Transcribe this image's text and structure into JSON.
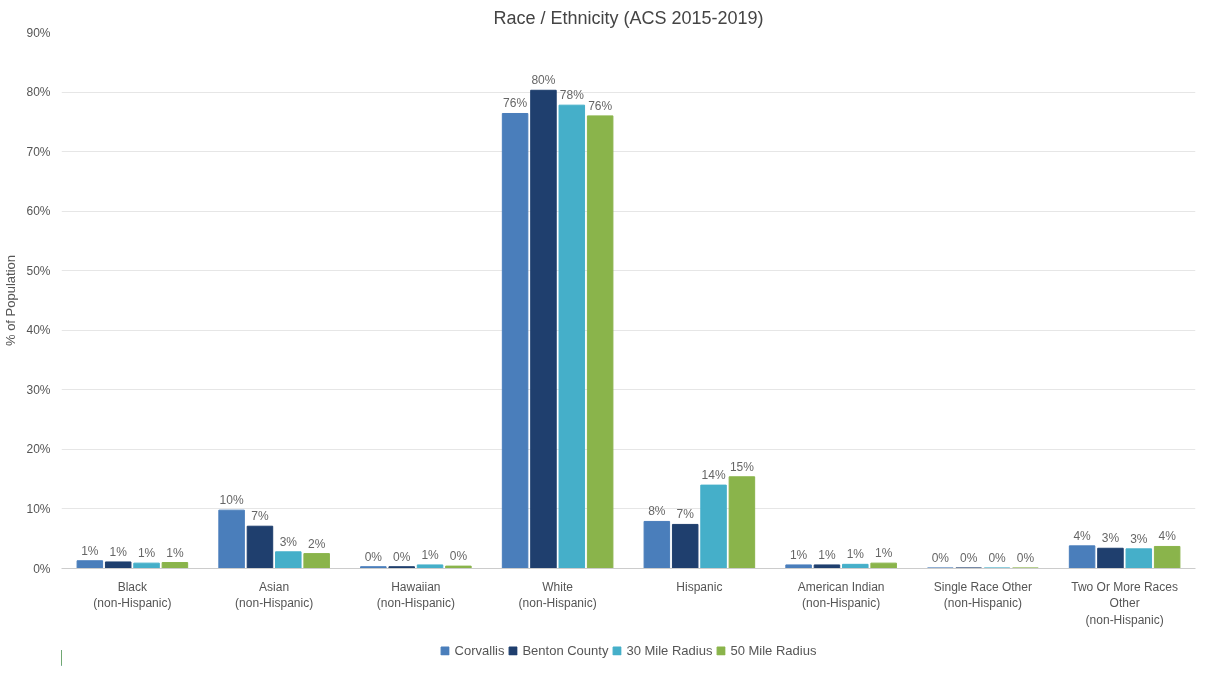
{
  "chart_data": {
    "type": "bar",
    "title": "Race / Ethnicity (ACS 2015-2019)",
    "ylabel": "% of Population",
    "categories": [
      "Black\n(non-Hispanic)",
      "Asian\n(non-Hispanic)",
      "Hawaiian\n(non-Hispanic)",
      "White\n(non-Hispanic)",
      "Hispanic",
      "American Indian\n(non-Hispanic)",
      "Single Race Other\n(non-Hispanic)",
      "Two Or More Races\nOther\n(non-Hispanic)"
    ],
    "series": [
      {
        "name": "Corvallis",
        "color": "#4a7ebb",
        "values": [
          1.3,
          9.8,
          0.3,
          76.4,
          7.9,
          0.6,
          0.1,
          3.8
        ],
        "value_labels": [
          "1%",
          "10%",
          "0%",
          "76%",
          "8%",
          "1%",
          "0%",
          "4%"
        ]
      },
      {
        "name": "Benton County",
        "color": "#1f3f6e",
        "values": [
          1.1,
          7.1,
          0.3,
          80.3,
          7.4,
          0.6,
          0.1,
          3.4
        ],
        "value_labels": [
          "1%",
          "7%",
          "0%",
          "80%",
          "7%",
          "1%",
          "0%",
          "3%"
        ]
      },
      {
        "name": "30 Mile Radius",
        "color": "#45afc9",
        "values": [
          0.9,
          2.8,
          0.6,
          77.8,
          14.0,
          0.7,
          0.1,
          3.3
        ],
        "value_labels": [
          "1%",
          "3%",
          "1%",
          "78%",
          "14%",
          "1%",
          "0%",
          "3%"
        ]
      },
      {
        "name": "50 Mile Radius",
        "color": "#8ab44b",
        "values": [
          1.0,
          2.5,
          0.4,
          76.0,
          15.4,
          0.9,
          0.1,
          3.7
        ],
        "value_labels": [
          "1%",
          "2%",
          "0%",
          "76%",
          "15%",
          "1%",
          "0%",
          "4%"
        ]
      }
    ],
    "ylim": [
      0,
      90
    ],
    "yticks": [
      {
        "value": 0,
        "label": "0%"
      },
      {
        "value": 10,
        "label": "10%"
      },
      {
        "value": 20,
        "label": "20%"
      },
      {
        "value": 30,
        "label": "30%"
      },
      {
        "value": 40,
        "label": "40%"
      },
      {
        "value": 50,
        "label": "50%"
      },
      {
        "value": 60,
        "label": "60%"
      },
      {
        "value": 70,
        "label": "70%"
      },
      {
        "value": 80,
        "label": "80%"
      },
      {
        "value": 90,
        "label": "90%"
      }
    ],
    "grid": "y",
    "legend": "bottom"
  }
}
